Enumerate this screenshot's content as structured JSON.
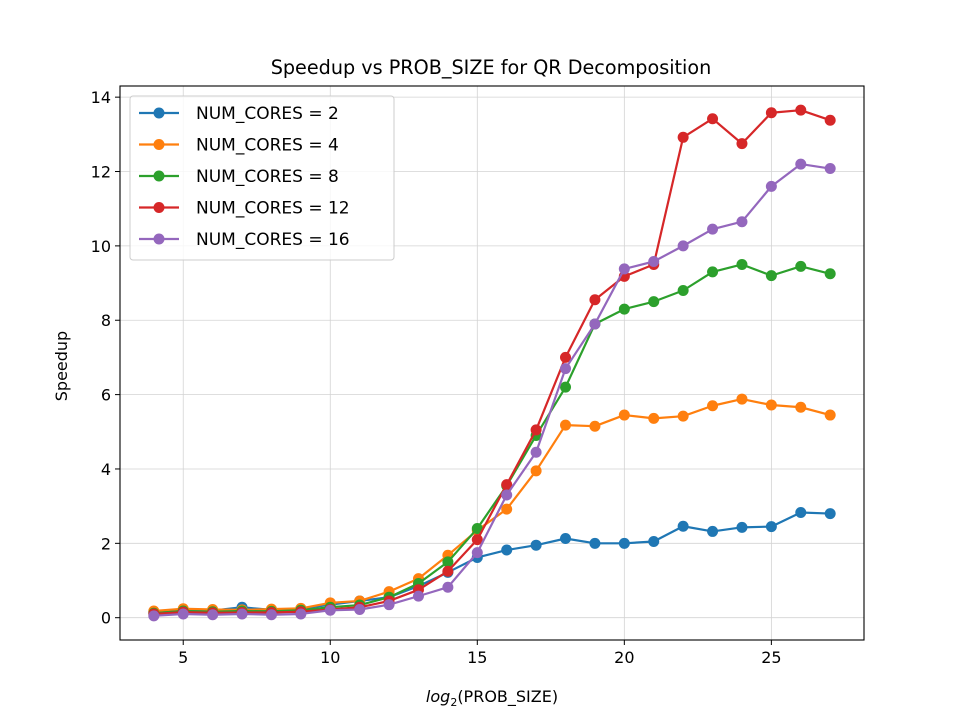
{
  "chart_data": {
    "type": "line",
    "title": "Speedup vs PROB_SIZE for QR Decomposition",
    "xlabel": {
      "prefix": "log",
      "subscript": "2",
      "suffix": "(PROB_SIZE)"
    },
    "ylabel": "Speedup",
    "xlim": [
      2.85,
      28.15
    ],
    "ylim": [
      -0.6,
      14.3
    ],
    "xticks": [
      5,
      10,
      15,
      20,
      25
    ],
    "yticks": [
      0,
      2,
      4,
      6,
      8,
      10,
      12,
      14
    ],
    "grid": true,
    "legend_position": "upper-left",
    "x": [
      4,
      5,
      6,
      7,
      8,
      9,
      10,
      11,
      12,
      13,
      14,
      15,
      16,
      17,
      18,
      19,
      20,
      21,
      22,
      23,
      24,
      25,
      26,
      27
    ],
    "series": [
      {
        "name": "NUM_CORES = 2",
        "color": "#1f77b4",
        "values": [
          0.15,
          0.22,
          0.19,
          0.28,
          0.21,
          0.24,
          0.35,
          0.45,
          0.55,
          0.85,
          1.22,
          1.62,
          1.82,
          1.95,
          2.13,
          2.0,
          2.0,
          2.05,
          2.46,
          2.32,
          2.43,
          2.45,
          2.83,
          2.8
        ]
      },
      {
        "name": "NUM_CORES = 4",
        "color": "#ff7f0e",
        "values": [
          0.18,
          0.24,
          0.22,
          0.21,
          0.23,
          0.25,
          0.4,
          0.45,
          0.7,
          1.05,
          1.68,
          2.35,
          2.92,
          3.95,
          5.18,
          5.15,
          5.45,
          5.36,
          5.42,
          5.7,
          5.88,
          5.72,
          5.66,
          5.45
        ]
      },
      {
        "name": "NUM_CORES = 8",
        "color": "#2ca02c",
        "values": [
          0.12,
          0.18,
          0.16,
          0.18,
          0.17,
          0.2,
          0.28,
          0.34,
          0.55,
          0.92,
          1.5,
          2.4,
          3.55,
          4.9,
          6.2,
          7.9,
          8.3,
          8.5,
          8.8,
          9.3,
          9.5,
          9.2,
          9.45,
          9.25
        ]
      },
      {
        "name": "NUM_CORES = 12",
        "color": "#d62728",
        "values": [
          0.1,
          0.15,
          0.13,
          0.14,
          0.14,
          0.16,
          0.22,
          0.28,
          0.45,
          0.75,
          1.25,
          2.1,
          3.58,
          5.05,
          7.0,
          8.55,
          9.18,
          9.5,
          12.92,
          13.42,
          12.75,
          13.58,
          13.65,
          13.38
        ]
      },
      {
        "name": "NUM_CORES = 16",
        "color": "#9467bd",
        "values": [
          0.05,
          0.1,
          0.08,
          0.1,
          0.08,
          0.1,
          0.2,
          0.22,
          0.35,
          0.58,
          0.82,
          1.75,
          3.3,
          4.45,
          6.7,
          7.9,
          9.38,
          9.58,
          10.0,
          10.45,
          10.65,
          11.6,
          12.2,
          12.08
        ]
      }
    ]
  }
}
